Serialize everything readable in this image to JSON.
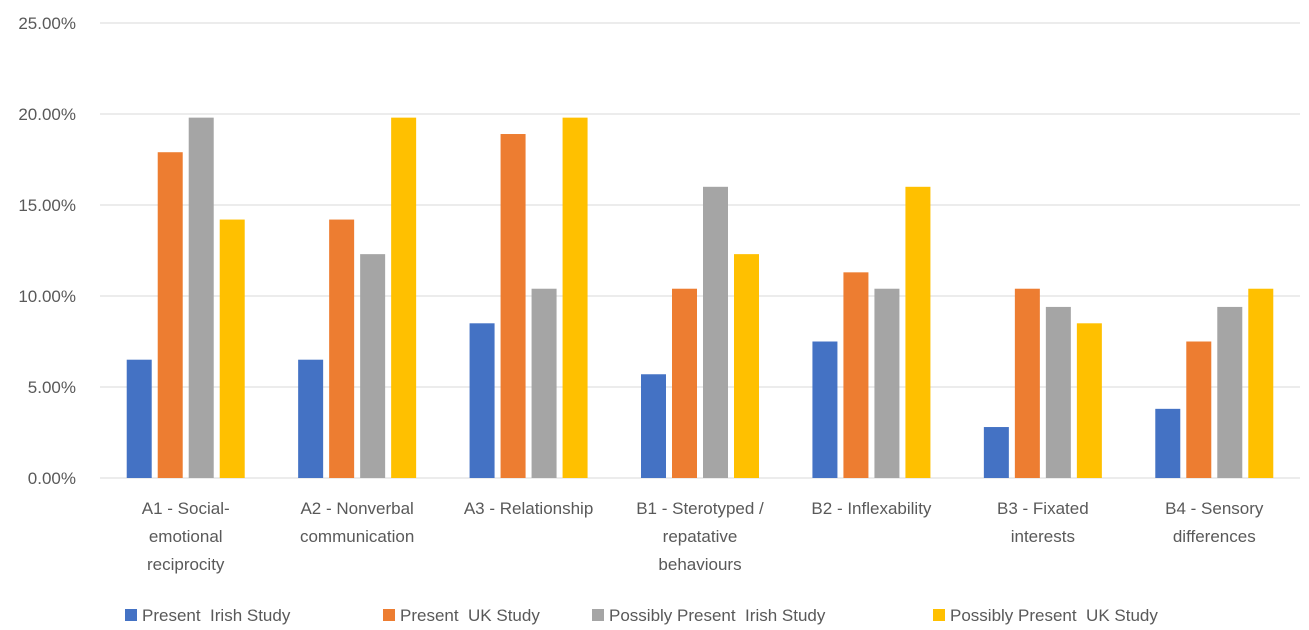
{
  "chart_data": {
    "type": "bar",
    "categories": [
      [
        "A1 - Social-",
        "emotional",
        "reciprocity"
      ],
      [
        "A2 - Nonverbal",
        "communication"
      ],
      [
        "A3 - Relationship"
      ],
      [
        "B1 - Sterotyped /",
        "repatative",
        "behaviours"
      ],
      [
        "B2 - Inflexability"
      ],
      [
        "B3 - Fixated",
        "interests"
      ],
      [
        "B4 - Sensory",
        "differences"
      ]
    ],
    "series": [
      {
        "name": "Present  Irish Study",
        "color": "#4472C4",
        "values": [
          0.065,
          0.065,
          0.085,
          0.057,
          0.075,
          0.028,
          0.038
        ]
      },
      {
        "name": "Present  UK Study",
        "color": "#ED7D31",
        "values": [
          0.179,
          0.142,
          0.189,
          0.104,
          0.113,
          0.104,
          0.075
        ]
      },
      {
        "name": "Possibly Present  Irish Study",
        "color": "#A5A5A5",
        "values": [
          0.198,
          0.123,
          0.104,
          0.16,
          0.104,
          0.094,
          0.094
        ]
      },
      {
        "name": "Possibly Present  UK Study",
        "color": "#FFC000",
        "values": [
          0.142,
          0.198,
          0.198,
          0.123,
          0.16,
          0.085,
          0.104
        ]
      }
    ],
    "yticks": [
      "0.00%",
      "5.00%",
      "10.00%",
      "15.00%",
      "20.00%",
      "25.00%"
    ],
    "ylim": [
      0,
      0.25
    ],
    "grid": true,
    "legend_position": "bottom",
    "title": "",
    "xlabel": "",
    "ylabel": ""
  }
}
